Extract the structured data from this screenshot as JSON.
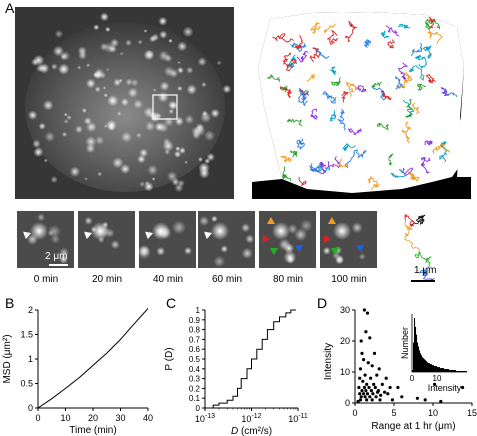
{
  "panels": {
    "a": {
      "label": "A"
    },
    "b": {
      "label": "B"
    },
    "c": {
      "label": "C"
    },
    "d": {
      "label": "D"
    }
  },
  "panel_a": {
    "scale_bar_small": "2 μm",
    "scale_bar_track": "1 μm",
    "time_captions": [
      "0 min",
      "20 min",
      "40 min",
      "60 min",
      "80 min",
      "100 min"
    ],
    "arrow_colors": {
      "white": "#ffffff",
      "orange": "#f39c1e",
      "red": "#e02020",
      "green": "#20b020",
      "blue": "#2060e0"
    },
    "track_colors": [
      "#e02020",
      "#f39c1e",
      "#2a7de0",
      "#8b2be0",
      "#2ca02c",
      "#00a0c8",
      "#000000"
    ]
  },
  "chart_data": [
    {
      "panel": "B",
      "type": "line",
      "xlabel": "Time (min)",
      "ylabel": "MSD (μm²)",
      "xlim": [
        0,
        40
      ],
      "ylim": [
        0,
        2
      ],
      "xticks": [
        "0",
        "10",
        "20",
        "30",
        "40"
      ],
      "yticks": [
        "0",
        "0.5",
        "1",
        "1.5",
        "2"
      ],
      "x": [
        0,
        5,
        10,
        15,
        20,
        25,
        30,
        35,
        40
      ],
      "y": [
        0,
        0.19,
        0.4,
        0.62,
        0.87,
        1.12,
        1.4,
        1.72,
        2.03
      ]
    },
    {
      "panel": "C",
      "type": "line",
      "xlabel": "D (cm²/s)",
      "ylabel": "P (D)",
      "xscale": "log",
      "xlim": [
        1e-13,
        1e-11
      ],
      "ylim": [
        0,
        1
      ],
      "xticks": [
        "10-13",
        "10-12",
        "10-11"
      ],
      "yticks": [
        "0",
        "0.1",
        "0.2",
        "0.3",
        "0.4",
        "0.5",
        "0.6",
        "0.7",
        "0.8",
        "0.9",
        "1"
      ],
      "x": [
        1.1e-13,
        1.5e-13,
        2e-13,
        3e-13,
        4e-13,
        5e-13,
        6e-13,
        8e-13,
        1e-12,
        1.3e-12,
        1.7e-12,
        2.2e-12,
        3e-12,
        4e-12,
        5.5e-12,
        7e-12,
        9e-12
      ],
      "y": [
        0,
        0.03,
        0.05,
        0.08,
        0.12,
        0.2,
        0.3,
        0.4,
        0.5,
        0.6,
        0.7,
        0.8,
        0.88,
        0.93,
        0.97,
        1.0,
        1.0
      ]
    },
    {
      "panel": "D",
      "type": "scatter",
      "xlabel": "Range at 1 hr (μm)",
      "ylabel": "Intensity",
      "xlim": [
        0,
        15
      ],
      "ylim": [
        0,
        30
      ],
      "xticks": [
        "0",
        "5",
        "10",
        "15"
      ],
      "yticks": [
        "0",
        "10",
        "20",
        "30"
      ],
      "points": [
        [
          1.2,
          30
        ],
        [
          1.6,
          29
        ],
        [
          1.4,
          23
        ],
        [
          0.8,
          20
        ],
        [
          1.9,
          21
        ],
        [
          0.9,
          16
        ],
        [
          2.5,
          16
        ],
        [
          1.1,
          14
        ],
        [
          1.7,
          13
        ],
        [
          0.7,
          11
        ],
        [
          2.2,
          12
        ],
        [
          3.1,
          11
        ],
        [
          1.3,
          9
        ],
        [
          0.6,
          8
        ],
        [
          2.0,
          8
        ],
        [
          2.8,
          9
        ],
        [
          4.0,
          8
        ],
        [
          1.0,
          7
        ],
        [
          1.5,
          6
        ],
        [
          2.4,
          6
        ],
        [
          3.5,
          6
        ],
        [
          0.5,
          5
        ],
        [
          1.2,
          5
        ],
        [
          1.8,
          5
        ],
        [
          2.6,
          5
        ],
        [
          3.0,
          4
        ],
        [
          4.5,
          5
        ],
        [
          5.5,
          5
        ],
        [
          0.9,
          4
        ],
        [
          1.4,
          4
        ],
        [
          2.1,
          4
        ],
        [
          2.9,
          3.5
        ],
        [
          3.8,
          3.5
        ],
        [
          0.6,
          3
        ],
        [
          1.1,
          3
        ],
        [
          1.6,
          3
        ],
        [
          2.3,
          3
        ],
        [
          3.3,
          2.5
        ],
        [
          4.2,
          3
        ],
        [
          0.8,
          2
        ],
        [
          1.3,
          2
        ],
        [
          1.9,
          2
        ],
        [
          2.7,
          2
        ],
        [
          6.0,
          2
        ],
        [
          10.2,
          6
        ],
        [
          13.8,
          5
        ],
        [
          8.0,
          1.5
        ],
        [
          9.0,
          1
        ],
        [
          0.7,
          1
        ],
        [
          1.5,
          1
        ],
        [
          2.2,
          1
        ],
        [
          3.2,
          1
        ],
        [
          4.8,
          1
        ],
        [
          11.0,
          0.5
        ],
        [
          0.4,
          0.5
        ]
      ]
    },
    {
      "panel": "D-inset",
      "type": "bar",
      "xlabel": "Intensity",
      "ylabel": "Number",
      "xticks": [
        "0",
        "10"
      ],
      "values": [
        2,
        30,
        55,
        46,
        38,
        30,
        26,
        22,
        19,
        17,
        15,
        14,
        13,
        12,
        11,
        10,
        9,
        9,
        8,
        8,
        7,
        7,
        6,
        6,
        6,
        5,
        5,
        5,
        4,
        4,
        4,
        4,
        3,
        3,
        3,
        3,
        3,
        2,
        2,
        2,
        2,
        2,
        2,
        2,
        1,
        1,
        1,
        1,
        1,
        1,
        1,
        1,
        1,
        1,
        1
      ]
    }
  ]
}
